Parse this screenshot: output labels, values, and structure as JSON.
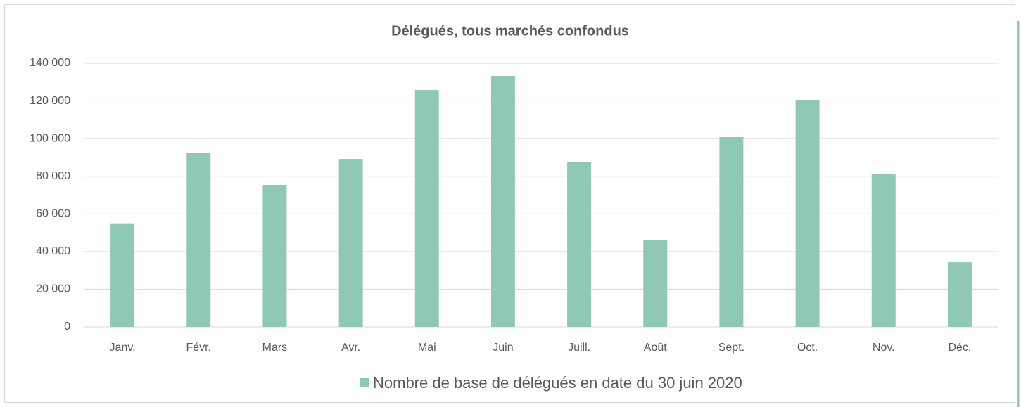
{
  "chart_data": {
    "type": "bar",
    "title": "Délégués, tous marchés confondus",
    "categories": [
      "Janv.",
      "Févr.",
      "Mars",
      "Avr.",
      "Mai",
      "Juin",
      "Juill.",
      "Août",
      "Sept.",
      "Oct.",
      "Nov.",
      "Déc."
    ],
    "series": [
      {
        "name": "Nombre de base de délégués en date du 30 juin 2020",
        "color": "#8fc8b5",
        "values": [
          55000,
          92600,
          75400,
          89200,
          125800,
          133300,
          87700,
          46300,
          100800,
          120600,
          81000,
          34300
        ]
      }
    ],
    "ylim": [
      0,
      140000
    ],
    "yticks": [
      {
        "value": 0,
        "label": "0"
      },
      {
        "value": 20000,
        "label": "20 000"
      },
      {
        "value": 40000,
        "label": "40 000"
      },
      {
        "value": 60000,
        "label": "60 000"
      },
      {
        "value": 80000,
        "label": "80 000"
      },
      {
        "value": 100000,
        "label": "100 000"
      },
      {
        "value": 120000,
        "label": "120 000"
      },
      {
        "value": 140000,
        "label": "140 000"
      }
    ],
    "grid": true,
    "legend": "bottom"
  }
}
